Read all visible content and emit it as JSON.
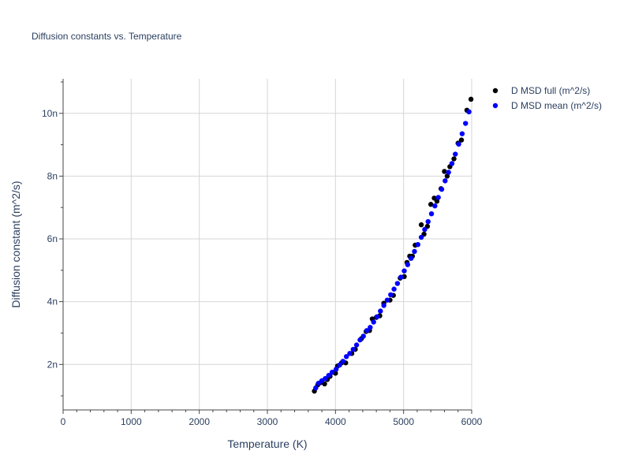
{
  "chart_data": {
    "type": "scatter",
    "title": "Diffusion constants vs. Temperature",
    "xlabel": "Temperature (K)",
    "ylabel": "Diffusion constant (m^2/s)",
    "xlim": [
      0,
      6000
    ],
    "ylim": [
      0.55,
      11.1
    ],
    "y_unit_suffix": "n",
    "x_ticks": [
      0,
      1000,
      2000,
      3000,
      4000,
      5000,
      6000
    ],
    "x_tick_labels": [
      "0",
      "1000",
      "2000",
      "3000",
      "4000",
      "5000",
      "6000"
    ],
    "y_ticks": [
      2,
      4,
      6,
      8,
      10
    ],
    "y_tick_labels": [
      "2n",
      "4n",
      "6n",
      "8n",
      "10n"
    ],
    "grid": true,
    "legend_position": "top-right",
    "series": [
      {
        "name": "D MSD full (m^2/s)",
        "color": "#000000",
        "x": [
          3690,
          3740,
          3780,
          3840,
          3880,
          3920,
          3970,
          4000,
          4030,
          4090,
          4150,
          4240,
          4290,
          4380,
          4450,
          4500,
          4540,
          4600,
          4650,
          4710,
          4800,
          4850,
          4950,
          5010,
          5050,
          5090,
          5130,
          5170,
          5260,
          5300,
          5350,
          5400,
          5450,
          5490,
          5550,
          5600,
          5640,
          5680,
          5740,
          5800,
          5850,
          5930,
          5990
        ],
        "y": [
          1.15,
          1.35,
          1.42,
          1.38,
          1.52,
          1.62,
          1.75,
          1.72,
          1.95,
          2.05,
          2.05,
          2.35,
          2.48,
          2.82,
          3.05,
          3.08,
          3.45,
          3.5,
          3.55,
          3.95,
          4.05,
          4.2,
          4.75,
          4.8,
          5.25,
          5.45,
          5.45,
          5.8,
          6.45,
          6.15,
          6.4,
          7.1,
          7.3,
          7.2,
          7.6,
          8.15,
          8.0,
          8.3,
          8.55,
          9.05,
          9.15,
          10.1,
          10.45
        ]
      },
      {
        "name": "D MSD mean (m^2/s)",
        "color": "#0000ff",
        "x": [
          3710,
          3750,
          3800,
          3850,
          3900,
          3950,
          4010,
          4060,
          4110,
          4160,
          4210,
          4260,
          4310,
          4360,
          4410,
          4460,
          4510,
          4560,
          4610,
          4660,
          4710,
          4760,
          4810,
          4860,
          4910,
          4960,
          5010,
          5060,
          5110,
          5160,
          5210,
          5260,
          5310,
          5360,
          5410,
          5460,
          5510,
          5560,
          5610,
          5660,
          5710,
          5760,
          5810,
          5860,
          5910,
          5960
        ],
        "y": [
          1.25,
          1.4,
          1.48,
          1.55,
          1.65,
          1.75,
          1.85,
          1.98,
          2.1,
          2.25,
          2.35,
          2.48,
          2.62,
          2.78,
          2.9,
          3.08,
          3.18,
          3.35,
          3.52,
          3.7,
          3.88,
          4.05,
          4.22,
          4.4,
          4.58,
          4.78,
          4.98,
          5.18,
          5.38,
          5.6,
          5.82,
          6.05,
          6.3,
          6.55,
          6.8,
          7.05,
          7.32,
          7.58,
          7.85,
          8.12,
          8.4,
          8.7,
          9.02,
          9.35,
          9.68,
          10.05
        ]
      }
    ]
  }
}
